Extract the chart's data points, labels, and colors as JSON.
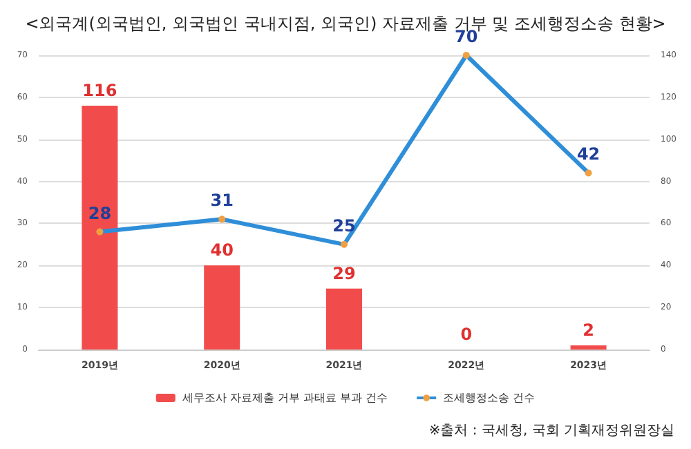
{
  "chart_data": {
    "type": "bar",
    "title": "<외국계(외국법인, 외국법인 국내지점, 외국인) 자료제출 거부 및 조세행정소송 현황>",
    "categories": [
      "2019년",
      "2020년",
      "2021년",
      "2022년",
      "2023년"
    ],
    "series": [
      {
        "name": "세무조사 자료제출 거부 과태료 부과 건수",
        "axis": "y2",
        "color": "#f24b4b",
        "values": [
          116,
          40,
          29,
          0,
          2
        ]
      },
      {
        "name": "조세행정소송 건수",
        "type": "line",
        "axis": "y",
        "color": "#2f8ed8",
        "values": [
          28,
          31,
          25,
          70,
          42
        ]
      }
    ],
    "ylim": [
      0,
      70
    ],
    "yticks": [
      0,
      10,
      20,
      30,
      40,
      50,
      60,
      70
    ],
    "y2lim": [
      0,
      140
    ],
    "y2ticks": [
      0,
      20,
      40,
      60,
      80,
      100,
      120,
      140
    ],
    "data_labels": true,
    "grid": "y",
    "legend": "bottom",
    "marker": "circle",
    "annotations": [
      "※출처 : 국세청, 국회 기획재정위원장실"
    ]
  }
}
